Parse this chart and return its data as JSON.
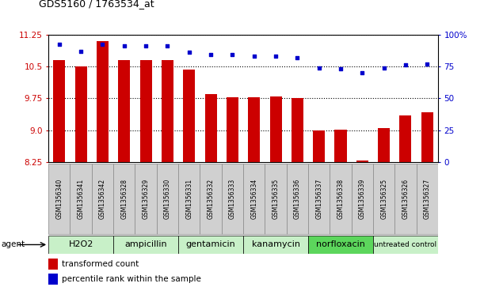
{
  "title": "GDS5160 / 1763534_at",
  "samples": [
    "GSM1356340",
    "GSM1356341",
    "GSM1356342",
    "GSM1356328",
    "GSM1356329",
    "GSM1356330",
    "GSM1356331",
    "GSM1356332",
    "GSM1356333",
    "GSM1356334",
    "GSM1356335",
    "GSM1356336",
    "GSM1356337",
    "GSM1356338",
    "GSM1356339",
    "GSM1356325",
    "GSM1356326",
    "GSM1356327"
  ],
  "bar_values": [
    10.65,
    10.5,
    11.1,
    10.65,
    10.65,
    10.65,
    10.42,
    9.85,
    9.78,
    9.78,
    9.8,
    9.75,
    9.0,
    9.02,
    8.28,
    9.05,
    9.35,
    9.42
  ],
  "percentile_values": [
    92,
    87,
    92,
    91,
    91,
    91,
    86,
    84,
    84,
    83,
    83,
    82,
    74,
    73,
    70,
    74,
    76,
    77
  ],
  "groups": [
    {
      "label": "H2O2",
      "start": 0,
      "end": 3,
      "color": "#c8f0c8"
    },
    {
      "label": "ampicillin",
      "start": 3,
      "end": 6,
      "color": "#c8f0c8"
    },
    {
      "label": "gentamicin",
      "start": 6,
      "end": 9,
      "color": "#c8f0c8"
    },
    {
      "label": "kanamycin",
      "start": 9,
      "end": 12,
      "color": "#c8f0c8"
    },
    {
      "label": "norfloxacin",
      "start": 12,
      "end": 15,
      "color": "#5cd65c"
    },
    {
      "label": "untreated control",
      "start": 15,
      "end": 18,
      "color": "#c8f0c8"
    }
  ],
  "bar_color": "#cc0000",
  "dot_color": "#0000cc",
  "ylim_left": [
    8.25,
    11.25
  ],
  "ylim_right": [
    0,
    100
  ],
  "yticks_left": [
    8.25,
    9.0,
    9.75,
    10.5,
    11.25
  ],
  "yticks_right": [
    0,
    25,
    50,
    75,
    100
  ],
  "ytick_labels_right": [
    "0",
    "25",
    "50",
    "75",
    "100%"
  ],
  "agent_label": "agent",
  "legend_bar": "transformed count",
  "legend_dot": "percentile rank within the sample",
  "background_color": "#ffffff",
  "plot_bg_color": "#ffffff",
  "tick_label_bg": "#d0d0d0",
  "group_border_color": "#000000"
}
